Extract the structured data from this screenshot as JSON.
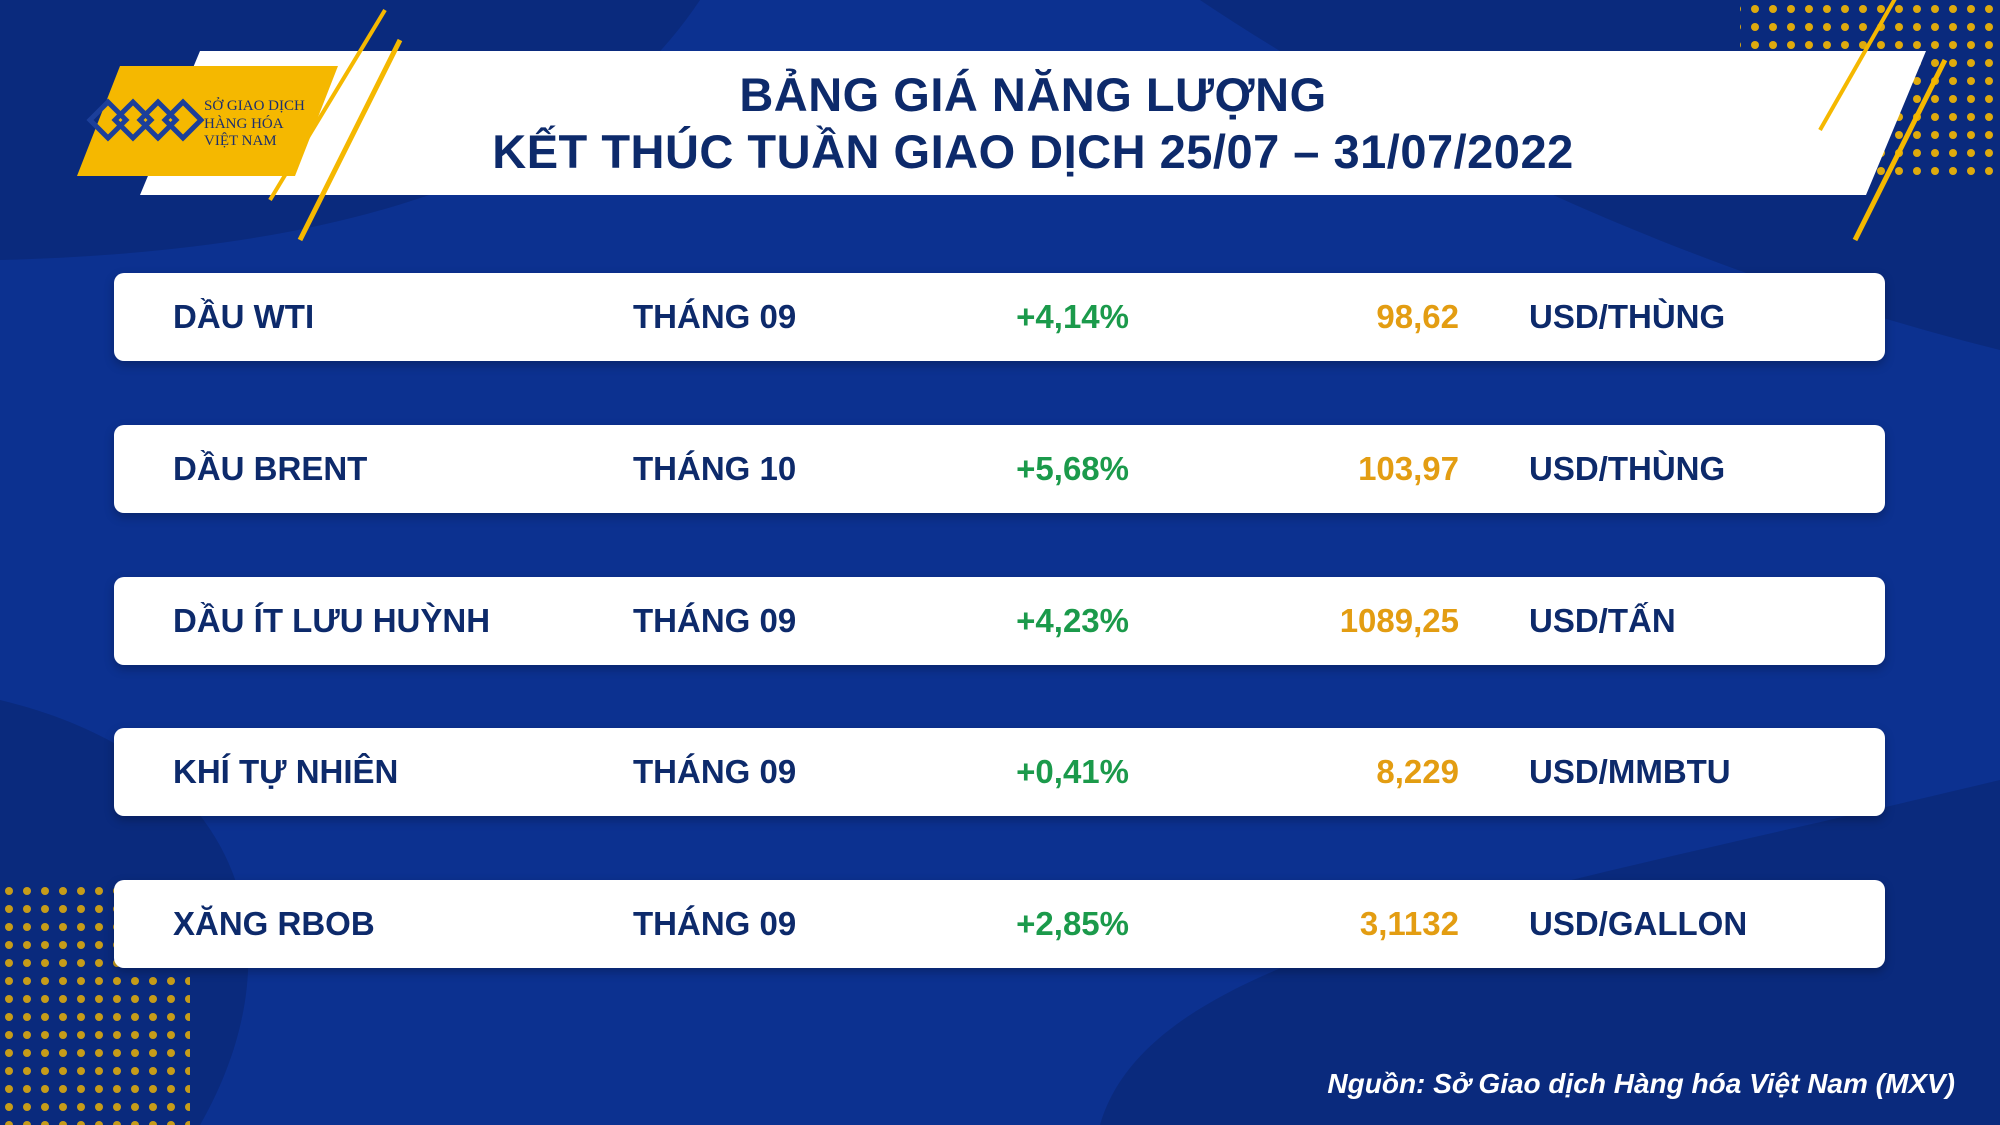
{
  "header": {
    "title": [
      "BẢNG GIÁ NĂNG LƯỢNG",
      "KẾT THÚC TUẦN GIAO DỊCH 25/07 – 31/07/2022"
    ],
    "logo": [
      "SỞ GIAO DỊCH",
      "HÀNG HÓA",
      "VIỆT NAM"
    ]
  },
  "table": {
    "rows": [
      [
        "DẦU WTI",
        "THÁNG 09",
        "+4,14%",
        "98,62",
        "USD/THÙNG"
      ],
      [
        "DẦU BRENT",
        "THÁNG 10",
        "+5,68%",
        "103,97",
        "USD/THÙNG"
      ],
      [
        "DẦU ÍT LƯU HUỲNH",
        "THÁNG 09",
        "+4,23%",
        "1089,25",
        "USD/TẤN"
      ],
      [
        "KHÍ TỰ NHIÊN",
        "THÁNG 09",
        "+0,41%",
        "8,229",
        "USD/MMBTU"
      ],
      [
        "XĂNG RBOB",
        "THÁNG 09",
        "+2,85%",
        "3,1132",
        "USD/GALLON"
      ]
    ]
  },
  "footer": {
    "source": "Nguồn: Sở Giao dịch Hàng hóa Việt Nam (MXV)"
  }
}
